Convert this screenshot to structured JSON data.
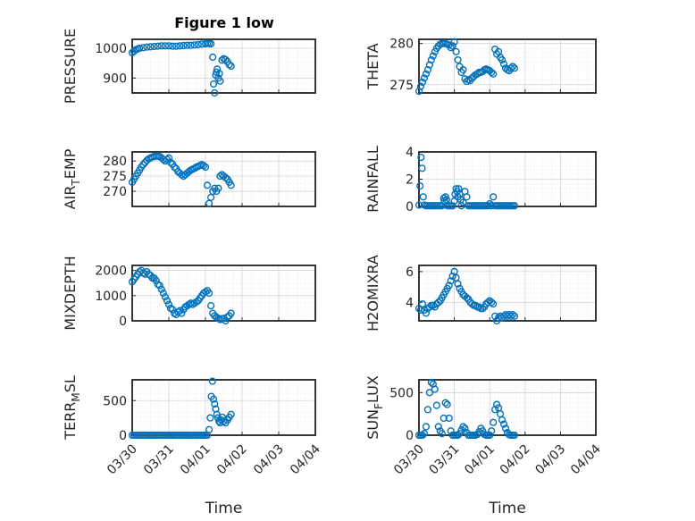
{
  "figure": {
    "title": "Figure 1 low"
  },
  "chart_data": {
    "type": "scatter",
    "marker": "open-circle",
    "color": "#0072BD",
    "grid": true,
    "x_unit": "days from 03/30",
    "x_ticks": [
      "03/30",
      "03/31",
      "04/01",
      "04/02",
      "04/03",
      "04/04"
    ],
    "xlabel": "Time",
    "panels": [
      {
        "name": "pressure",
        "ylabel": "PRESSURE",
        "yticks": [
          900,
          1000
        ],
        "ylim": [
          850,
          1030
        ],
        "x": [
          0.0,
          0.05,
          0.1,
          0.15,
          0.2,
          0.3,
          0.4,
          0.5,
          0.6,
          0.7,
          0.8,
          0.9,
          1.0,
          1.1,
          1.2,
          1.3,
          1.4,
          1.5,
          1.6,
          1.7,
          1.8,
          1.9,
          2.0,
          2.05,
          2.1,
          2.15,
          2.2,
          2.22,
          2.25,
          2.28,
          2.3,
          2.32,
          2.35,
          2.38,
          2.4,
          2.45,
          2.5,
          2.55,
          2.6,
          2.65,
          2.7
        ],
        "y": [
          985,
          990,
          995,
          998,
          1000,
          1002,
          1004,
          1005,
          1006,
          1007,
          1008,
          1008,
          1008,
          1007,
          1007,
          1008,
          1009,
          1010,
          1010,
          1011,
          1012,
          1014,
          1015,
          1016,
          1016,
          1015,
          970,
          880,
          850,
          910,
          920,
          930,
          900,
          915,
          890,
          960,
          965,
          962,
          955,
          945,
          940
        ]
      },
      {
        "name": "theta",
        "ylabel": "THETA",
        "yticks": [
          275,
          280
        ],
        "ylim": [
          274,
          280.5
        ],
        "x": [
          0.0,
          0.05,
          0.1,
          0.15,
          0.2,
          0.25,
          0.3,
          0.35,
          0.4,
          0.45,
          0.5,
          0.55,
          0.6,
          0.65,
          0.7,
          0.75,
          0.8,
          0.85,
          0.9,
          0.95,
          1.0,
          1.05,
          1.1,
          1.15,
          1.2,
          1.25,
          1.3,
          1.35,
          1.4,
          1.45,
          1.5,
          1.55,
          1.6,
          1.65,
          1.7,
          1.75,
          1.8,
          1.85,
          1.9,
          1.95,
          2.0,
          2.05,
          2.1,
          2.15,
          2.2,
          2.25,
          2.3,
          2.35,
          2.4,
          2.45,
          2.5,
          2.55,
          2.6,
          2.65,
          2.7
        ],
        "y": [
          274.2,
          274.8,
          275.3,
          275.8,
          276.3,
          276.8,
          277.4,
          278.0,
          278.5,
          279.0,
          279.4,
          279.7,
          279.9,
          280.0,
          280.0,
          280.0,
          279.9,
          279.8,
          279.5,
          279.7,
          280.2,
          279.0,
          278.0,
          277.2,
          276.5,
          276.8,
          275.7,
          275.4,
          275.6,
          275.5,
          275.8,
          276.0,
          276.2,
          276.3,
          276.5,
          276.5,
          276.6,
          276.8,
          276.9,
          276.8,
          276.7,
          276.5,
          276.3,
          279.3,
          278.7,
          279.0,
          278.3,
          278.0,
          277.5,
          277.0,
          276.8,
          276.7,
          277.0,
          277.2,
          277.0
        ]
      },
      {
        "name": "air-temp",
        "ylabel": "AIR_TEMP",
        "yticks": [
          270,
          275,
          280
        ],
        "ylim": [
          265,
          283
        ],
        "x": [
          0.0,
          0.05,
          0.1,
          0.15,
          0.2,
          0.25,
          0.3,
          0.35,
          0.4,
          0.45,
          0.5,
          0.55,
          0.6,
          0.65,
          0.7,
          0.75,
          0.8,
          0.85,
          0.9,
          0.95,
          1.0,
          1.05,
          1.1,
          1.15,
          1.2,
          1.25,
          1.3,
          1.35,
          1.4,
          1.45,
          1.5,
          1.55,
          1.6,
          1.65,
          1.7,
          1.75,
          1.8,
          1.85,
          1.9,
          1.95,
          2.0,
          2.05,
          2.1,
          2.15,
          2.2,
          2.25,
          2.3,
          2.35,
          2.4,
          2.45,
          2.5,
          2.55,
          2.6,
          2.65,
          2.7
        ],
        "y": [
          273.0,
          274.0,
          275.0,
          276.0,
          277.0,
          278.0,
          278.8,
          279.5,
          280.2,
          280.7,
          281.0,
          281.3,
          281.5,
          281.6,
          281.6,
          281.5,
          281.0,
          280.5,
          280.0,
          280.5,
          281.0,
          279.5,
          279.0,
          278.0,
          277.5,
          276.5,
          276.0,
          275.5,
          275.0,
          275.5,
          276.0,
          276.5,
          277.0,
          277.3,
          277.6,
          278.0,
          278.2,
          278.5,
          278.8,
          278.5,
          278.0,
          272.0,
          266.0,
          268.0,
          270.0,
          271.0,
          270.0,
          271.0,
          275.0,
          275.5,
          275.0,
          274.5,
          274.0,
          273.0,
          272.0
        ]
      },
      {
        "name": "rainfall",
        "ylabel": "RAINFALL",
        "yticks": [
          0,
          2,
          4
        ],
        "ylim": [
          0,
          4
        ],
        "x": [
          0.0,
          0.03,
          0.06,
          0.09,
          0.12,
          0.15,
          0.2,
          0.25,
          0.3,
          0.35,
          0.4,
          0.45,
          0.5,
          0.55,
          0.6,
          0.65,
          0.7,
          0.72,
          0.75,
          0.78,
          0.8,
          0.85,
          0.9,
          0.95,
          1.0,
          1.02,
          1.05,
          1.08,
          1.1,
          1.12,
          1.15,
          1.18,
          1.2,
          1.25,
          1.3,
          1.35,
          1.4,
          1.45,
          1.5,
          1.55,
          1.6,
          1.65,
          1.7,
          1.75,
          1.8,
          1.85,
          1.9,
          1.95,
          2.0,
          2.02,
          2.05,
          2.1,
          2.15,
          2.2,
          2.25,
          2.3,
          2.35,
          2.4,
          2.45,
          2.5,
          2.55,
          2.6,
          2.65,
          2.7
        ],
        "y": [
          0.1,
          1.5,
          3.6,
          2.8,
          0.7,
          0.1,
          0.05,
          0.05,
          0.05,
          0.05,
          0.05,
          0.05,
          0.05,
          0.05,
          0.05,
          0.05,
          0.6,
          0.4,
          0.7,
          0.5,
          0.05,
          0.05,
          0.05,
          0.05,
          0.4,
          0.9,
          1.3,
          1.1,
          0.7,
          1.3,
          0.9,
          0.5,
          0.05,
          0.3,
          1.1,
          0.7,
          0.05,
          0.05,
          0.05,
          0.05,
          0.05,
          0.05,
          0.05,
          0.05,
          0.05,
          0.05,
          0.05,
          0.05,
          0.2,
          0.05,
          0.05,
          0.7,
          0.05,
          0.05,
          0.05,
          0.05,
          0.05,
          0.05,
          0.05,
          0.05,
          0.05,
          0.05,
          0.05,
          0.05
        ]
      },
      {
        "name": "mixdepth",
        "ylabel": "MIXDEPTH",
        "yticks": [
          0,
          1000,
          2000
        ],
        "ylim": [
          0,
          2200
        ],
        "x": [
          0.0,
          0.05,
          0.1,
          0.15,
          0.2,
          0.25,
          0.3,
          0.35,
          0.4,
          0.45,
          0.5,
          0.55,
          0.6,
          0.65,
          0.7,
          0.75,
          0.8,
          0.85,
          0.9,
          0.95,
          1.0,
          1.05,
          1.1,
          1.15,
          1.2,
          1.25,
          1.3,
          1.35,
          1.4,
          1.45,
          1.5,
          1.55,
          1.6,
          1.65,
          1.7,
          1.75,
          1.8,
          1.85,
          1.9,
          1.95,
          2.0,
          2.05,
          2.1,
          2.15,
          2.2,
          2.25,
          2.3,
          2.35,
          2.4,
          2.45,
          2.5,
          2.55,
          2.6,
          2.65,
          2.7
        ],
        "y": [
          1550,
          1650,
          1750,
          1850,
          1950,
          2000,
          1900,
          1850,
          1950,
          1850,
          1800,
          1700,
          1700,
          1600,
          1450,
          1400,
          1250,
          1100,
          950,
          800,
          650,
          500,
          450,
          300,
          250,
          350,
          400,
          300,
          450,
          550,
          600,
          650,
          700,
          650,
          700,
          750,
          800,
          900,
          1000,
          1100,
          1150,
          1200,
          1100,
          600,
          300,
          200,
          150,
          100,
          50,
          80,
          100,
          0,
          150,
          200,
          300
        ]
      },
      {
        "name": "h2omixra",
        "ylabel": "H2OMIXRA",
        "yticks": [
          4,
          6
        ],
        "ylim": [
          2.8,
          6.4
        ],
        "x": [
          0.0,
          0.05,
          0.1,
          0.15,
          0.2,
          0.25,
          0.3,
          0.35,
          0.4,
          0.45,
          0.5,
          0.55,
          0.6,
          0.65,
          0.7,
          0.75,
          0.8,
          0.85,
          0.9,
          0.95,
          1.0,
          1.05,
          1.1,
          1.15,
          1.2,
          1.25,
          1.3,
          1.35,
          1.4,
          1.45,
          1.5,
          1.55,
          1.6,
          1.65,
          1.7,
          1.75,
          1.8,
          1.85,
          1.9,
          1.95,
          2.0,
          2.05,
          2.1,
          2.15,
          2.2,
          2.25,
          2.3,
          2.35,
          2.4,
          2.45,
          2.5,
          2.55,
          2.6,
          2.65,
          2.7
        ],
        "y": [
          3.6,
          3.5,
          3.9,
          3.5,
          3.3,
          3.6,
          3.7,
          3.8,
          3.8,
          3.7,
          3.9,
          4.0,
          4.1,
          4.3,
          4.5,
          4.7,
          4.9,
          5.1,
          5.4,
          5.7,
          6.0,
          5.6,
          5.2,
          4.9,
          4.7,
          4.5,
          4.4,
          4.3,
          4.2,
          4.0,
          3.9,
          3.8,
          3.8,
          3.7,
          3.7,
          3.6,
          3.6,
          3.7,
          3.9,
          4.0,
          4.1,
          4.0,
          3.9,
          3.1,
          2.8,
          3.0,
          3.1,
          3.0,
          3.1,
          3.2,
          3.1,
          3.2,
          3.1,
          3.2,
          3.1
        ]
      },
      {
        "name": "terr-msl",
        "ylabel": "TERR_MSL",
        "yticks": [
          0,
          500
        ],
        "ylim": [
          0,
          800
        ],
        "x": [
          0.0,
          0.05,
          0.1,
          0.15,
          0.2,
          0.25,
          0.3,
          0.35,
          0.4,
          0.45,
          0.5,
          0.55,
          0.6,
          0.65,
          0.7,
          0.75,
          0.8,
          0.85,
          0.9,
          0.95,
          1.0,
          1.05,
          1.1,
          1.15,
          1.2,
          1.25,
          1.3,
          1.35,
          1.4,
          1.45,
          1.5,
          1.55,
          1.6,
          1.65,
          1.7,
          1.75,
          1.8,
          1.85,
          1.9,
          1.95,
          2.0,
          2.05,
          2.1,
          2.13,
          2.16,
          2.19,
          2.22,
          2.25,
          2.28,
          2.31,
          2.34,
          2.37,
          2.4,
          2.43,
          2.46,
          2.5,
          2.55,
          2.6,
          2.65,
          2.7
        ],
        "y": [
          0,
          0,
          0,
          0,
          0,
          0,
          0,
          0,
          0,
          0,
          0,
          0,
          0,
          0,
          0,
          0,
          0,
          0,
          0,
          0,
          0,
          0,
          0,
          0,
          0,
          0,
          0,
          0,
          0,
          0,
          0,
          0,
          0,
          0,
          0,
          0,
          0,
          0,
          0,
          0,
          0,
          0,
          80,
          250,
          560,
          780,
          520,
          450,
          380,
          300,
          250,
          200,
          180,
          220,
          260,
          200,
          180,
          220,
          260,
          300
        ]
      },
      {
        "name": "sun-flux",
        "ylabel": "SUN_FLUX",
        "yticks": [
          0,
          500
        ],
        "ylim": [
          0,
          650
        ],
        "x": [
          0.0,
          0.05,
          0.1,
          0.15,
          0.2,
          0.25,
          0.3,
          0.35,
          0.4,
          0.45,
          0.5,
          0.55,
          0.6,
          0.65,
          0.7,
          0.75,
          0.8,
          0.85,
          0.9,
          0.95,
          1.0,
          1.05,
          1.1,
          1.15,
          1.2,
          1.25,
          1.3,
          1.35,
          1.4,
          1.45,
          1.5,
          1.55,
          1.6,
          1.65,
          1.7,
          1.75,
          1.8,
          1.85,
          1.9,
          1.95,
          2.0,
          2.05,
          2.1,
          2.15,
          2.2,
          2.25,
          2.3,
          2.35,
          2.4,
          2.45,
          2.5,
          2.55,
          2.6,
          2.65,
          2.7
        ],
        "y": [
          0,
          0,
          0,
          20,
          100,
          300,
          500,
          620,
          600,
          540,
          350,
          100,
          50,
          20,
          200,
          380,
          360,
          200,
          50,
          0,
          0,
          0,
          0,
          20,
          60,
          100,
          80,
          30,
          0,
          0,
          0,
          0,
          0,
          10,
          40,
          80,
          50,
          10,
          0,
          0,
          0,
          50,
          150,
          300,
          360,
          320,
          250,
          180,
          130,
          80,
          30,
          5,
          0,
          0,
          0
        ]
      }
    ]
  }
}
